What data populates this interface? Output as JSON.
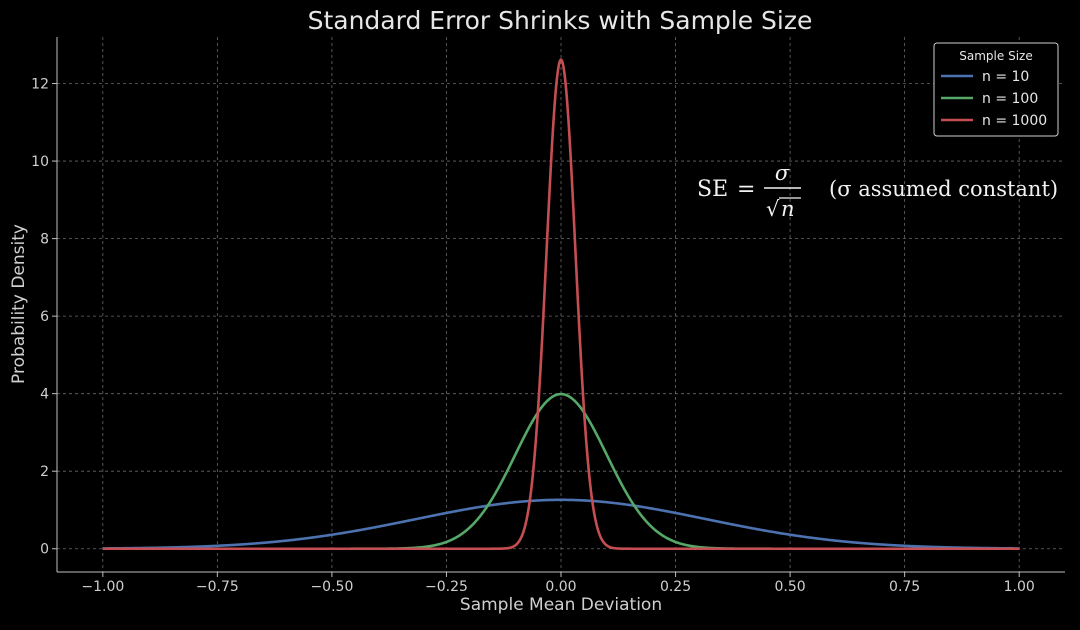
{
  "chart_data": {
    "type": "line",
    "title": "Standard Error Shrinks with Sample Size",
    "xlabel": "Sample Mean Deviation",
    "ylabel": "Probability Density",
    "xlim": [
      -1.1,
      1.1
    ],
    "ylim": [
      -0.6,
      13.2
    ],
    "xticks": [
      -1.0,
      -0.75,
      -0.5,
      -0.25,
      0.0,
      0.25,
      0.5,
      0.75,
      1.0
    ],
    "xtick_labels": [
      "−1.00",
      "−0.75",
      "−0.50",
      "−0.25",
      "0.00",
      "0.25",
      "0.50",
      "0.75",
      "1.00"
    ],
    "yticks": [
      0,
      2,
      4,
      6,
      8,
      10,
      12
    ],
    "ytick_labels": [
      "0",
      "2",
      "4",
      "6",
      "8",
      "10",
      "12"
    ],
    "grid": true,
    "x_range_plotted": [
      -1.0,
      1.0
    ],
    "sigma": 1,
    "legend": {
      "title": "Sample Size",
      "placement": "top-right"
    },
    "series": [
      {
        "name": "n = 10",
        "n": 10,
        "color": "#4c72b0"
      },
      {
        "name": "n = 100",
        "n": 100,
        "color": "#55a868"
      },
      {
        "name": "n = 1000",
        "n": 1000,
        "color": "#c44e52"
      }
    ],
    "annotation": {
      "lhs": "SE",
      "equals": "=",
      "numerator": "σ",
      "radical": "√",
      "denominator": "n",
      "note": "(σ assumed constant)"
    }
  }
}
